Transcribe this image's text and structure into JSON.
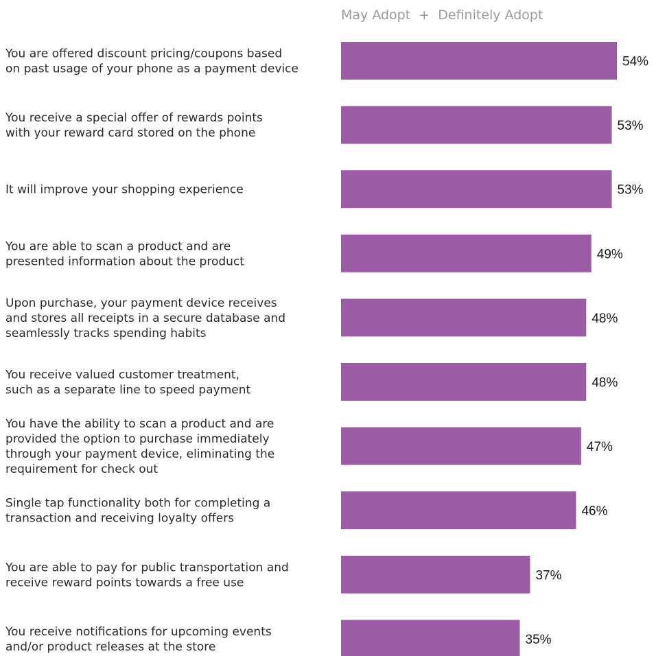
{
  "chart_data": {
    "type": "bar",
    "orientation": "horizontal",
    "legend": "May Adopt  +  Definitely Adopt",
    "categories": [
      "You are offered discount pricing/coupons based\non past usage of your phone as a payment device",
      "You receive a special offer of rewards points\nwith your reward card stored on the phone",
      "It will improve your shopping experience",
      "You are able to scan a product and are\npresented information about the product",
      "Upon purchase, your payment device receives\nand stores all receipts in a secure database and\nseamlessly tracks spending habits",
      "You receive valued customer treatment,\nsuch as a separate line to speed payment",
      "You have the ability to scan a product and are\nprovided the option to purchase immediately\nthrough your payment device, eliminating the\nrequirement for check out",
      "Single tap functionality both for completing a\ntransaction and receiving loyalty offers",
      "You are able to pay for public transportation and\nreceive reward points towards a free use",
      "You receive notifications for upcoming events\nand/or product releases at the store"
    ],
    "values": [
      54,
      53,
      53,
      49,
      48,
      48,
      47,
      46,
      37,
      35
    ],
    "value_labels": [
      "54%",
      "53%",
      "53%",
      "49%",
      "48%",
      "48%",
      "47%",
      "46%",
      "37%",
      "35%"
    ],
    "bar_color": "#9b5ba5",
    "xlim": [
      0,
      54
    ]
  }
}
